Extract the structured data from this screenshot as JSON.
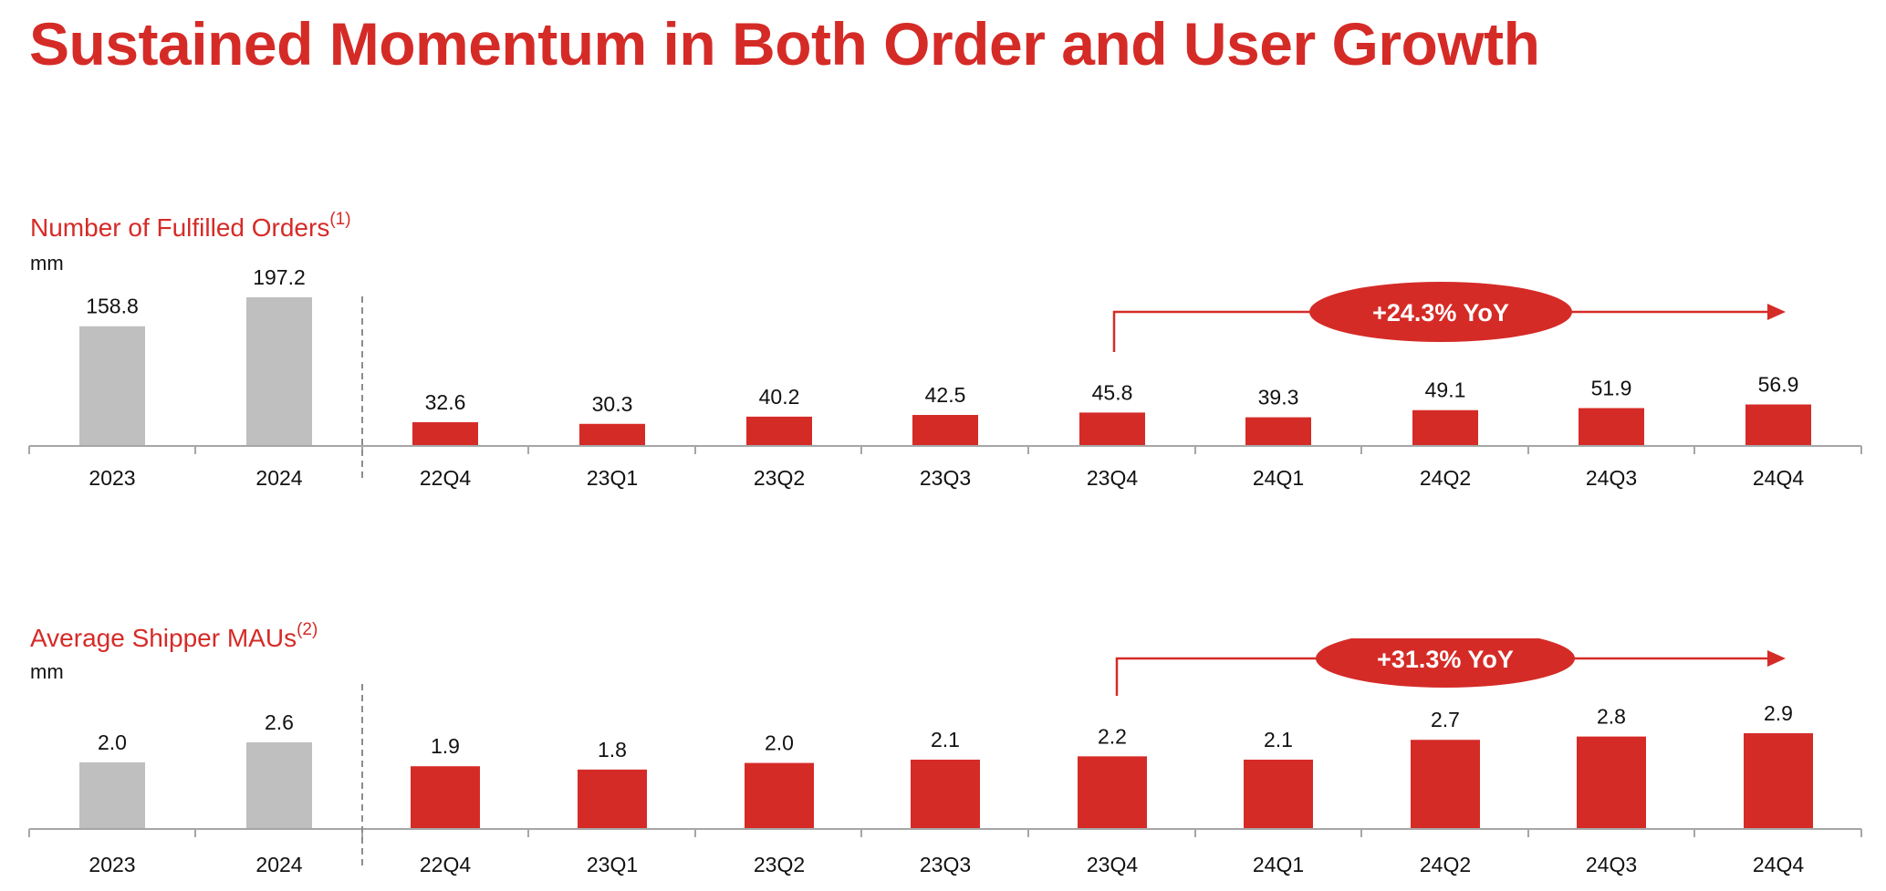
{
  "page": {
    "title": "Sustained Momentum in Both Order and User Growth"
  },
  "colors": {
    "accent": "#d52b27",
    "annual_bar": "#bfbfbf",
    "quarter_bar": "#d52b27",
    "axis": "#a6a6a6"
  },
  "chart_data": [
    {
      "type": "bar",
      "title": "Number of Fulfilled Orders",
      "title_footnote": "(1)",
      "ylabel": "mm",
      "categories": [
        "2023",
        "2024",
        "22Q4",
        "23Q1",
        "23Q2",
        "23Q3",
        "23Q4",
        "24Q1",
        "24Q2",
        "24Q3",
        "24Q4"
      ],
      "values": [
        158.8,
        197.2,
        32.6,
        30.3,
        40.2,
        42.5,
        45.8,
        39.3,
        49.1,
        51.9,
        56.9
      ],
      "value_labels": [
        "158.8",
        "197.2",
        "32.6",
        "30.3",
        "40.2",
        "42.5",
        "45.8",
        "39.3",
        "49.1",
        "51.9",
        "56.9"
      ],
      "groups": [
        {
          "name": "annual",
          "categories": [
            "2023",
            "2024"
          ]
        },
        {
          "name": "quarterly",
          "categories": [
            "22Q4",
            "23Q1",
            "23Q2",
            "23Q3",
            "23Q4",
            "24Q1",
            "24Q2",
            "24Q3",
            "24Q4"
          ]
        }
      ],
      "annotation": {
        "text": "+24.3% YoY",
        "from": "23Q4",
        "to": "24Q4"
      },
      "grid": false,
      "legend": "none"
    },
    {
      "type": "bar",
      "title": "Average Shipper MAUs",
      "title_footnote": "(2)",
      "ylabel": "mm",
      "categories": [
        "2023",
        "2024",
        "22Q4",
        "23Q1",
        "23Q2",
        "23Q3",
        "23Q4",
        "24Q1",
        "24Q2",
        "24Q3",
        "24Q4"
      ],
      "values": [
        2.0,
        2.6,
        1.9,
        1.8,
        2.0,
        2.1,
        2.2,
        2.1,
        2.7,
        2.8,
        2.9
      ],
      "value_labels": [
        "2.0",
        "2.6",
        "1.9",
        "1.8",
        "2.0",
        "2.1",
        "2.2",
        "2.1",
        "2.7",
        "2.8",
        "2.9"
      ],
      "groups": [
        {
          "name": "annual",
          "categories": [
            "2023",
            "2024"
          ]
        },
        {
          "name": "quarterly",
          "categories": [
            "22Q4",
            "23Q1",
            "23Q2",
            "23Q3",
            "23Q4",
            "24Q1",
            "24Q2",
            "24Q3",
            "24Q4"
          ]
        }
      ],
      "annotation": {
        "text": "+31.3% YoY",
        "from": "23Q4",
        "to": "24Q4"
      },
      "grid": false,
      "legend": "none"
    }
  ]
}
